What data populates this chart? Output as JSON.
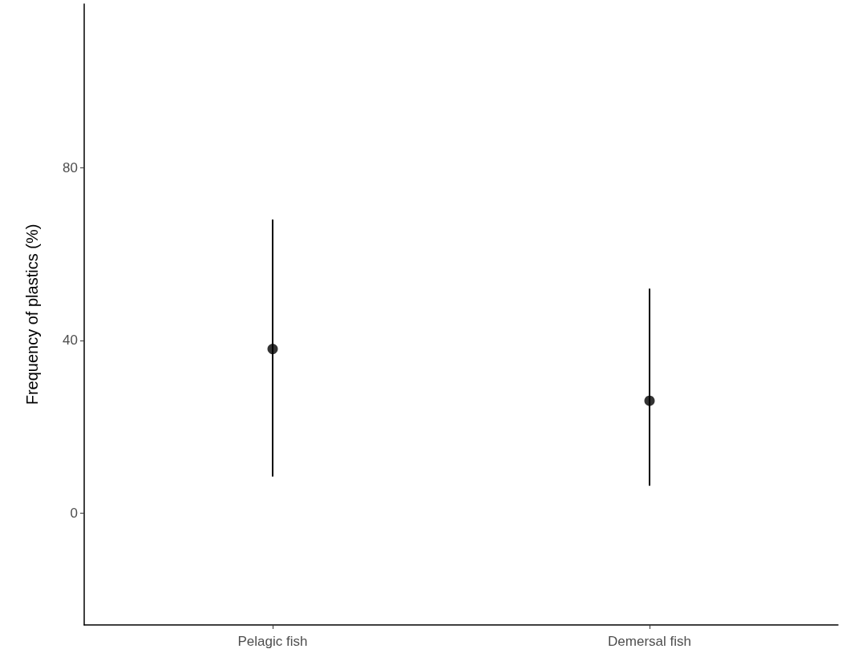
{
  "chart_data": {
    "type": "scatter",
    "ylabel": "Frequency of plastics (%)",
    "categories": [
      "Pelagic fish",
      "Demersal fish"
    ],
    "values": [
      38,
      26
    ],
    "errors": [
      [
        8.4,
        68
      ],
      [
        6.3,
        52
      ]
    ],
    "color": "#000000",
    "marker": "circle",
    "ylim": [
      -26,
      118
    ],
    "yticks": [
      0,
      40,
      80
    ],
    "grid": false
  }
}
